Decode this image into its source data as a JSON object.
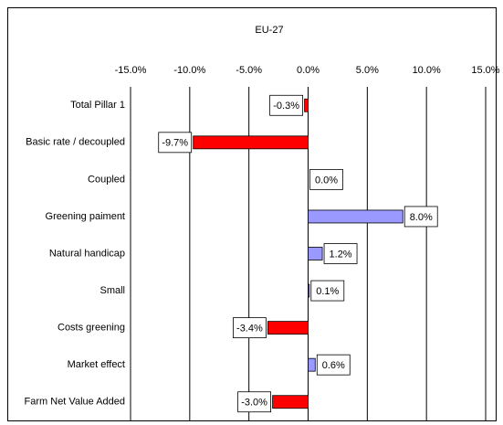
{
  "chart_data": {
    "type": "bar",
    "orientation": "horizontal",
    "title": "EU-27",
    "categories": [
      "Total Pillar 1",
      "Basic rate / decoupled",
      "Coupled",
      "Greening paiment",
      "Natural handicap",
      "Small",
      "Costs greening",
      "Market effect",
      "Farm Net Value Added"
    ],
    "values": [
      -0.3,
      -9.7,
      0.0,
      8.0,
      1.2,
      0.1,
      -3.4,
      0.6,
      -3.0
    ],
    "value_labels": [
      "-0.3%",
      "-9.7%",
      "0.0%",
      "8.0%",
      "1.2%",
      "0.1%",
      "-3.4%",
      "0.6%",
      "-3.0%"
    ],
    "colors": [
      "#ff0000",
      "#ff0000",
      "#9999ff",
      "#9999ff",
      "#9999ff",
      "#9999ff",
      "#ff0000",
      "#9999ff",
      "#ff0000"
    ],
    "xlim": [
      -15,
      15
    ],
    "xticks": [
      {
        "value": -15,
        "label": "-15.0%"
      },
      {
        "value": -10,
        "label": "-10.0%"
      },
      {
        "value": -5,
        "label": "-5.0%"
      },
      {
        "value": 0,
        "label": "0.0%"
      },
      {
        "value": 5,
        "label": "5.0%"
      },
      {
        "value": 10,
        "label": "10.0%"
      },
      {
        "value": 15,
        "label": "15.0%"
      }
    ],
    "grid": true
  }
}
